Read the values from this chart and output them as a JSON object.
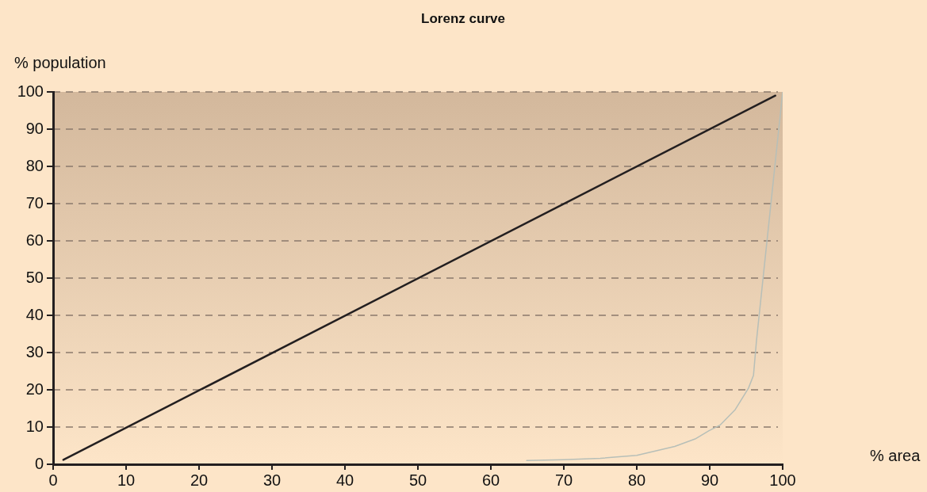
{
  "chart_data": {
    "type": "line",
    "title": "Lorenz curve",
    "xlabel": "% area",
    "ylabel": "% population",
    "xlim": [
      0,
      100
    ],
    "ylim": [
      0,
      100
    ],
    "xticks": [
      0,
      10,
      20,
      30,
      40,
      50,
      60,
      70,
      80,
      90,
      100
    ],
    "yticks": [
      0,
      10,
      20,
      30,
      40,
      50,
      60,
      70,
      80,
      90,
      100
    ],
    "grid": "y",
    "marker": "none",
    "series": [
      {
        "color": "#231f20",
        "x": [
          1.4,
          99
        ],
        "values": [
          1.2,
          99
        ]
      },
      {
        "color": "#b7bfb8",
        "x": [
          64.9,
          69.9,
          75,
          80,
          85.2,
          88,
          89.9,
          91.4,
          93.5,
          95.3,
          96,
          96.4,
          100
        ],
        "values": [
          1,
          1.2,
          1.6,
          2.4,
          4.8,
          6.8,
          9,
          10.5,
          14.7,
          20.4,
          23.9,
          33,
          100
        ]
      }
    ]
  }
}
